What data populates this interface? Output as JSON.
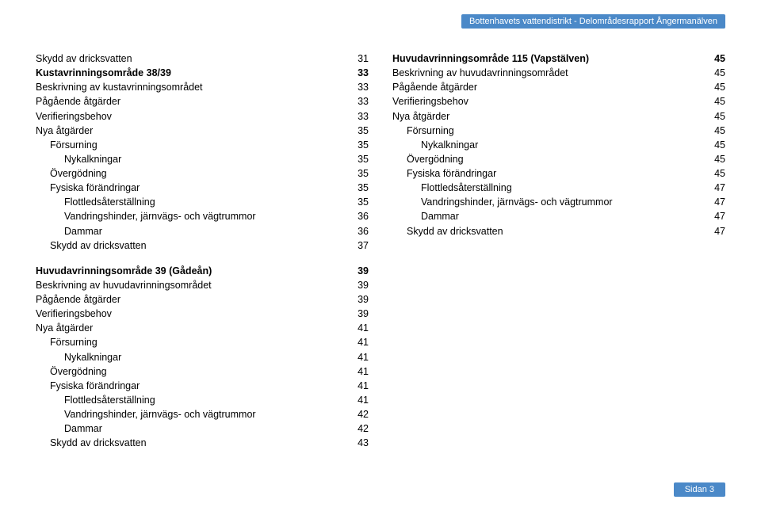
{
  "header": "Bottenhavets vattendistrikt - Delområdesrapport Ångermanälven",
  "footer": "Sidan 3",
  "colors": {
    "accent": "#4b89c8",
    "accent_text": "#ffffff",
    "body_text": "#000000",
    "background": "#ffffff"
  },
  "columns": {
    "left": [
      {
        "label": "Skydd av dricksvatten",
        "page": "31",
        "indent": 0,
        "bold": false
      },
      {
        "label": "Kustavrinningsområde 38/39",
        "page": "33",
        "indent": 0,
        "bold": true
      },
      {
        "label": "Beskrivning av kustavrinningsområdet",
        "page": "33",
        "indent": 0,
        "bold": false
      },
      {
        "label": "Pågående åtgärder",
        "page": "33",
        "indent": 0,
        "bold": false
      },
      {
        "label": "Verifieringsbehov",
        "page": "33",
        "indent": 0,
        "bold": false
      },
      {
        "label": "Nya åtgärder",
        "page": "35",
        "indent": 0,
        "bold": false
      },
      {
        "label": "Försurning",
        "page": "35",
        "indent": 1,
        "bold": false
      },
      {
        "label": "Nykalkningar",
        "page": "35",
        "indent": 2,
        "bold": false
      },
      {
        "label": "Övergödning",
        "page": "35",
        "indent": 1,
        "bold": false
      },
      {
        "label": "Fysiska förändringar",
        "page": "35",
        "indent": 1,
        "bold": false
      },
      {
        "label": "Flottledsåterställning",
        "page": "35",
        "indent": 2,
        "bold": false
      },
      {
        "label": "Vandringshinder, järnvägs- och vägtrummor",
        "page": "36",
        "indent": 2,
        "bold": false
      },
      {
        "label": "Dammar",
        "page": "36",
        "indent": 2,
        "bold": false
      },
      {
        "label": "Skydd av dricksvatten",
        "page": "37",
        "indent": 1,
        "bold": false
      },
      {
        "gap": true
      },
      {
        "label": "Huvudavrinningsområde 39 (Gådeån)",
        "page": "39",
        "indent": 0,
        "bold": true
      },
      {
        "label": "Beskrivning av huvudavrinningsområdet",
        "page": "39",
        "indent": 0,
        "bold": false
      },
      {
        "label": "Pågående åtgärder",
        "page": "39",
        "indent": 0,
        "bold": false
      },
      {
        "label": "Verifieringsbehov",
        "page": "39",
        "indent": 0,
        "bold": false
      },
      {
        "label": "Nya åtgärder",
        "page": "41",
        "indent": 0,
        "bold": false
      },
      {
        "label": "Försurning",
        "page": "41",
        "indent": 1,
        "bold": false
      },
      {
        "label": "Nykalkningar",
        "page": "41",
        "indent": 2,
        "bold": false
      },
      {
        "label": "Övergödning",
        "page": "41",
        "indent": 1,
        "bold": false
      },
      {
        "label": "Fysiska förändringar",
        "page": "41",
        "indent": 1,
        "bold": false
      },
      {
        "label": "Flottledsåterställning",
        "page": "41",
        "indent": 2,
        "bold": false
      },
      {
        "label": "Vandringshinder, järnvägs- och vägtrummor",
        "page": "42",
        "indent": 2,
        "bold": false
      },
      {
        "label": "Dammar",
        "page": "42",
        "indent": 2,
        "bold": false
      },
      {
        "label": "Skydd av dricksvatten",
        "page": "43",
        "indent": 1,
        "bold": false
      }
    ],
    "right": [
      {
        "label": "Huvudavrinningsområde 115 (Vapstälven)",
        "page": "45",
        "indent": 0,
        "bold": true
      },
      {
        "label": "Beskrivning av huvudavrinningsområdet",
        "page": "45",
        "indent": 0,
        "bold": false
      },
      {
        "label": "Pågående åtgärder",
        "page": "45",
        "indent": 0,
        "bold": false
      },
      {
        "label": "Verifieringsbehov",
        "page": "45",
        "indent": 0,
        "bold": false
      },
      {
        "label": "Nya åtgärder",
        "page": "45",
        "indent": 0,
        "bold": false
      },
      {
        "label": "Försurning",
        "page": "45",
        "indent": 1,
        "bold": false
      },
      {
        "label": "Nykalkningar",
        "page": "45",
        "indent": 2,
        "bold": false
      },
      {
        "label": "Övergödning",
        "page": "45",
        "indent": 1,
        "bold": false
      },
      {
        "label": "Fysiska förändringar",
        "page": "45",
        "indent": 1,
        "bold": false
      },
      {
        "label": "Flottledsåterställning",
        "page": "47",
        "indent": 2,
        "bold": false
      },
      {
        "label": "Vandringshinder, järnvägs- och vägtrummor",
        "page": "47",
        "indent": 2,
        "bold": false
      },
      {
        "label": "Dammar",
        "page": "47",
        "indent": 2,
        "bold": false
      },
      {
        "label": "Skydd av dricksvatten",
        "page": "47",
        "indent": 1,
        "bold": false
      }
    ]
  }
}
